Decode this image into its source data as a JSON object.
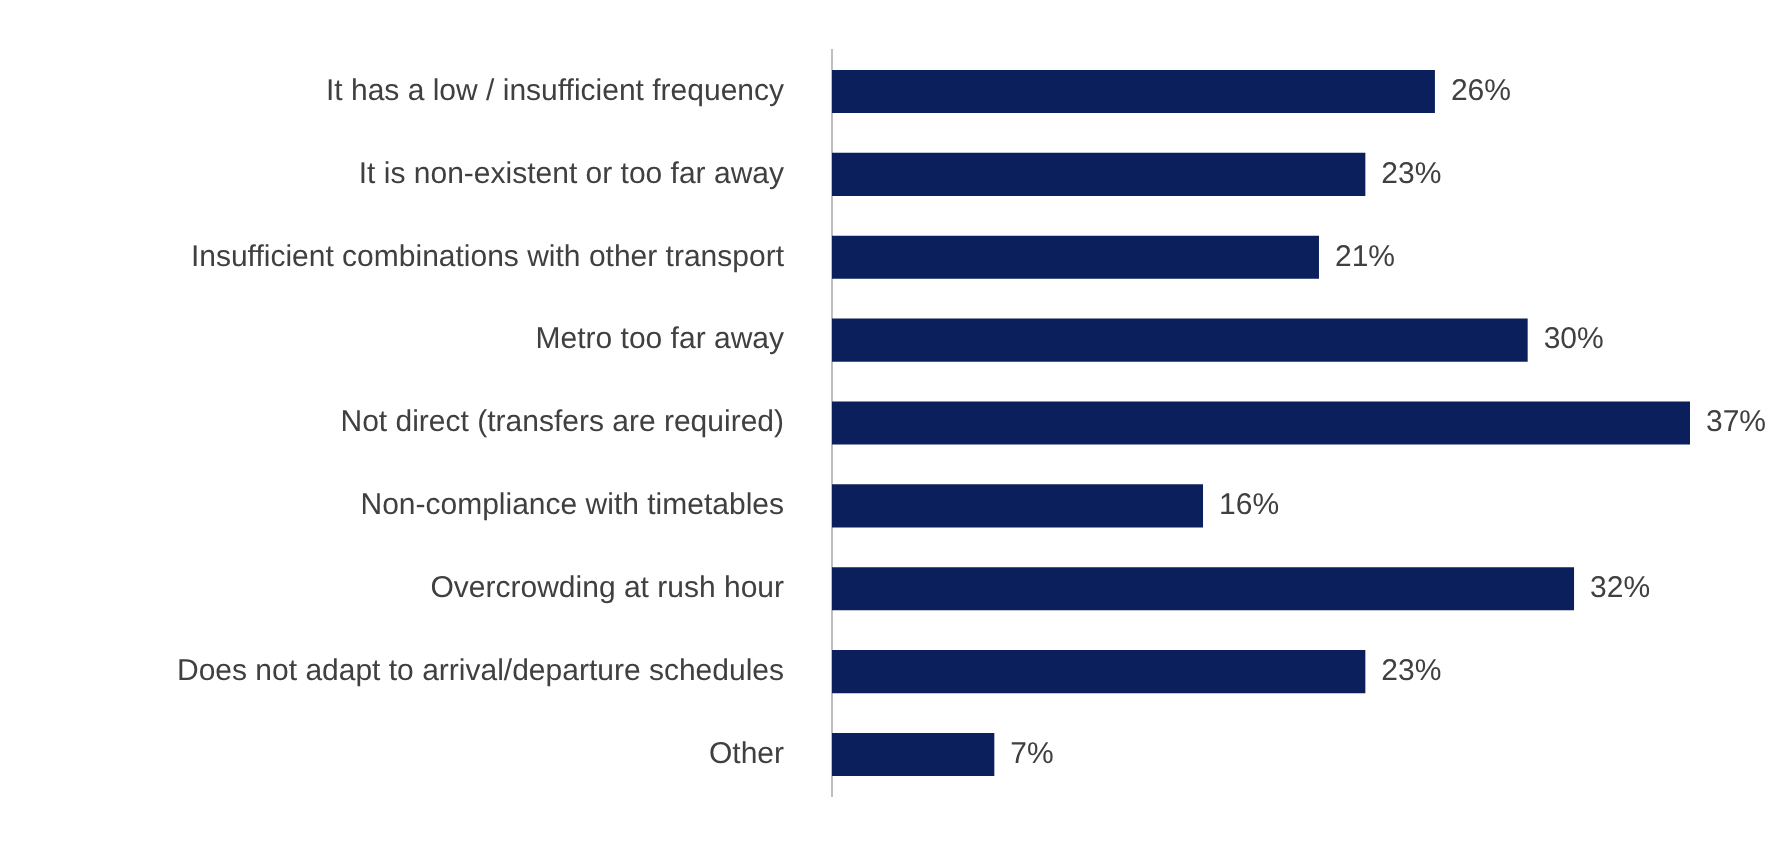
{
  "chart_data": {
    "type": "bar",
    "orientation": "horizontal",
    "categories": [
      "It has a low / insufficient frequency",
      "It is non-existent or too far away",
      "Insufficient combinations with other transport",
      "Metro too far away",
      "Not direct (transfers are required)",
      "Non-compliance with timetables",
      "Overcrowding at rush hour",
      "Does not adapt to arrival/departure schedules",
      "Other"
    ],
    "values": [
      26,
      23,
      21,
      30,
      37,
      16,
      32,
      23,
      7
    ],
    "value_labels": [
      "26%",
      "23%",
      "21%",
      "30%",
      "37%",
      "16%",
      "32%",
      "23%",
      "7%"
    ],
    "color": "#0a1f5c"
  }
}
